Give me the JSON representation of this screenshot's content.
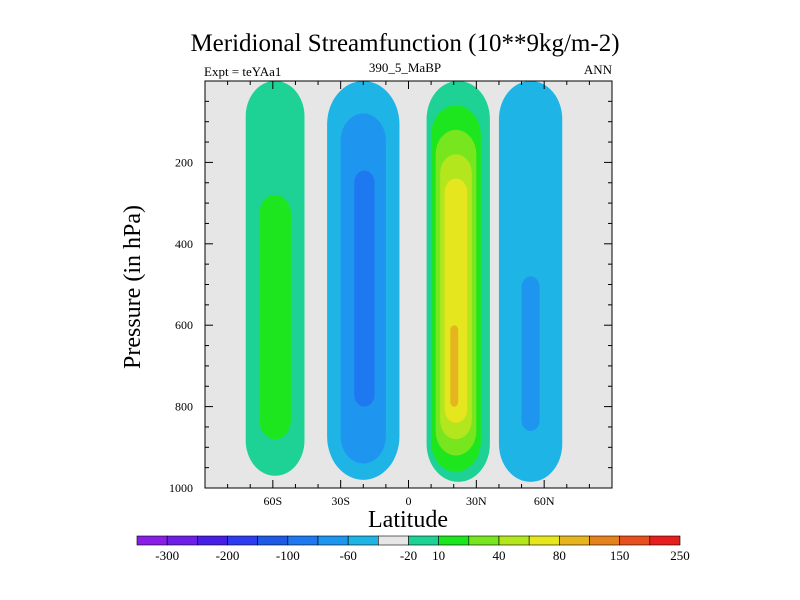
{
  "chart_data": {
    "type": "heatmap",
    "title": "Meridional Streamfunction (10**9kg/m-2)",
    "left_label": "Expt = teYAa1",
    "center_label": "390_5_MaBP",
    "right_label": "ANN",
    "xlabel": "Latitude",
    "ylabel": "Pressure (in hPa)",
    "xlim": [
      -90,
      90
    ],
    "ylim": [
      1000,
      0
    ],
    "x_ticks": [
      {
        "value": -60,
        "label": "60S"
      },
      {
        "value": -30,
        "label": "30S"
      },
      {
        "value": 0,
        "label": "0"
      },
      {
        "value": 30,
        "label": "30N"
      },
      {
        "value": 60,
        "label": "60N"
      }
    ],
    "y_ticks": [
      {
        "value": 200,
        "label": "200"
      },
      {
        "value": 400,
        "label": "400"
      },
      {
        "value": 600,
        "label": "600"
      },
      {
        "value": 800,
        "label": "800"
      },
      {
        "value": 1000,
        "label": "1000"
      }
    ],
    "colorbar": {
      "colors": [
        "#8a1ee6",
        "#6e1ee6",
        "#461ee6",
        "#2d3cf0",
        "#1e5ae6",
        "#1e78f0",
        "#1e96f0",
        "#1eb4e6",
        "#e6e6e6",
        "#1ed296",
        "#1ee61e",
        "#78e61e",
        "#b4e61e",
        "#e6e61e",
        "#e6b41e",
        "#e6821e",
        "#e6501e",
        "#e61e1e"
      ],
      "labels": [
        {
          "after_index": 0,
          "text": "-300"
        },
        {
          "after_index": 2,
          "text": "-200"
        },
        {
          "after_index": 4,
          "text": "-100"
        },
        {
          "after_index": 6,
          "text": "-60"
        },
        {
          "after_index": 8,
          "text": "-20"
        },
        {
          "after_index": 9,
          "text": "10"
        },
        {
          "after_index": 11,
          "text": "40"
        },
        {
          "after_index": 13,
          "text": "80"
        },
        {
          "after_index": 15,
          "text": "150"
        },
        {
          "after_index": 17,
          "text": "250"
        }
      ]
    },
    "regions": [
      {
        "name": "sh-ferrel-outer",
        "lat_min": -72,
        "lat_max": -46,
        "p_top": 0,
        "p_bot": 970,
        "color": "#1ed296"
      },
      {
        "name": "sh-ferrel-core",
        "lat_min": -66,
        "lat_max": -52,
        "p_top": 280,
        "p_bot": 880,
        "color": "#1ee61e"
      },
      {
        "name": "sh-hadley-outer",
        "lat_min": -36,
        "lat_max": -4,
        "p_top": 0,
        "p_bot": 980,
        "color": "#1eb4e6"
      },
      {
        "name": "sh-hadley-mid",
        "lat_min": -30,
        "lat_max": -10,
        "p_top": 80,
        "p_bot": 940,
        "color": "#1e96f0"
      },
      {
        "name": "sh-hadley-core",
        "lat_min": -24,
        "lat_max": -15,
        "p_top": 220,
        "p_bot": 800,
        "color": "#1e78f0"
      },
      {
        "name": "nh-hadley-outer",
        "lat_min": 8,
        "lat_max": 36,
        "p_top": 0,
        "p_bot": 985,
        "color": "#1ed296"
      },
      {
        "name": "nh-hadley-l2",
        "lat_min": 10,
        "lat_max": 32,
        "p_top": 60,
        "p_bot": 960,
        "color": "#1ee61e"
      },
      {
        "name": "nh-hadley-l3",
        "lat_min": 12,
        "lat_max": 30,
        "p_top": 120,
        "p_bot": 920,
        "color": "#78e61e"
      },
      {
        "name": "nh-hadley-l4",
        "lat_min": 14,
        "lat_max": 28,
        "p_top": 180,
        "p_bot": 880,
        "color": "#b4e61e"
      },
      {
        "name": "nh-hadley-l5",
        "lat_min": 16,
        "lat_max": 26,
        "p_top": 240,
        "p_bot": 840,
        "color": "#e6e61e"
      },
      {
        "name": "nh-hadley-peak",
        "lat_min": 18.5,
        "lat_max": 22,
        "p_top": 600,
        "p_bot": 800,
        "color": "#e6b41e"
      },
      {
        "name": "nh-ferrel-outer",
        "lat_min": 40,
        "lat_max": 68,
        "p_top": 0,
        "p_bot": 985,
        "color": "#1eb4e6"
      },
      {
        "name": "nh-ferrel-core",
        "lat_min": 50,
        "lat_max": 58,
        "p_top": 480,
        "p_bot": 860,
        "color": "#1e96f0"
      }
    ]
  }
}
